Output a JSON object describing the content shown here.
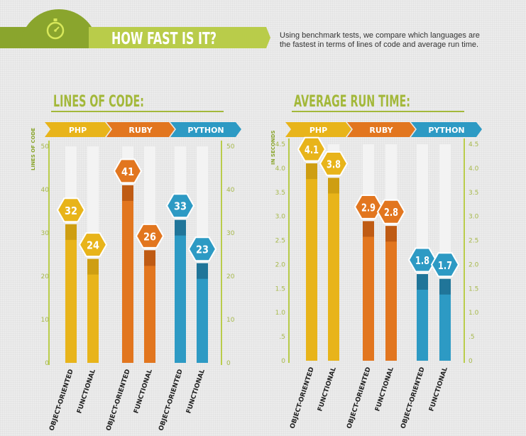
{
  "header": {
    "title": "HOW FAST IS IT?",
    "description": "Using benchmark tests, we compare which languages are the fastest in terms of lines of code and average run time.",
    "icon": "stopwatch-icon"
  },
  "colors": {
    "green_dark": "#8aa52d",
    "green_light": "#b9cc4a",
    "title_green": "#a3b83a",
    "php": "#e8b41a",
    "ruby": "#e2761f",
    "python": "#2d9ac4",
    "track": "#f3f3f3"
  },
  "categories": [
    "OBJECT-ORIENTED",
    "FUNCTIONAL",
    "OBJECT-ORIENTED",
    "FUNCTIONAL",
    "OBJECT-ORIENTED",
    "FUNCTIONAL"
  ],
  "languages": [
    "PHP",
    "RUBY",
    "PYTHON"
  ],
  "chart_data": [
    {
      "type": "bar",
      "title": "LINES OF CODE:",
      "ylabel": "LINES OF CODE",
      "groups": [
        "PHP",
        "RUBY",
        "PYTHON"
      ],
      "categories": [
        "OBJECT-ORIENTED",
        "FUNCTIONAL",
        "OBJECT-ORIENTED",
        "FUNCTIONAL",
        "OBJECT-ORIENTED",
        "FUNCTIONAL"
      ],
      "values": [
        32,
        24,
        41,
        26,
        33,
        23
      ],
      "labels": [
        "32",
        "24",
        "41",
        "26",
        "33",
        "23"
      ],
      "ylim": [
        0,
        50
      ],
      "yticks": [
        "0",
        "10",
        "20",
        "30",
        "40",
        "50"
      ]
    },
    {
      "type": "bar",
      "title": "AVERAGE RUN TIME:",
      "ylabel": "IN SECONDS",
      "groups": [
        "PHP",
        "RUBY",
        "PYTHON"
      ],
      "categories": [
        "OBJECT-ORIENTED",
        "FUNCTIONAL",
        "OBJECT-ORIENTED",
        "FUNCTIONAL",
        "OBJECT-ORIENTED",
        "FUNCTIONAL"
      ],
      "values": [
        4.1,
        3.8,
        2.9,
        2.8,
        1.8,
        1.7
      ],
      "labels": [
        "4.1",
        "3.8",
        "2.9",
        "2.8",
        "1.8",
        "1.7"
      ],
      "ylim": [
        0,
        4.5
      ],
      "yticks": [
        "0",
        ".5",
        "1.0",
        "1.5",
        "2.0",
        "2.5",
        "3.0",
        "3.5",
        "4.0",
        "4.5"
      ]
    }
  ]
}
